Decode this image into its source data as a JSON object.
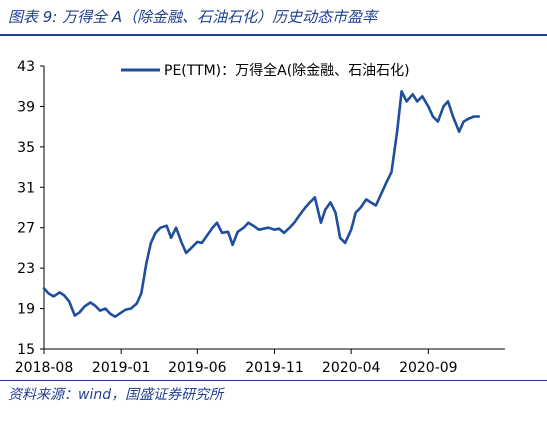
{
  "figure": {
    "title": "图表 9:  万得全 A（除金融、石油石化）历史动态市盈率",
    "source": "资料来源：wind，国盛证券研究所"
  },
  "colors": {
    "accent": "#1f3f8f",
    "line": "#1f4e9c"
  },
  "chart_data": {
    "type": "line",
    "title": "",
    "xlabel": "",
    "ylabel": "",
    "ylim": [
      15,
      43
    ],
    "yticks": [
      15,
      19,
      23,
      27,
      31,
      35,
      39,
      43
    ],
    "xticks": [
      "2018-08",
      "2019-01",
      "2019-06",
      "2019-11",
      "2020-04",
      "2020-09"
    ],
    "xrange": [
      "2018-08-01",
      "2021-01-31"
    ],
    "legend": "top-center",
    "grid": false,
    "series": [
      {
        "name": "PE(TTM)：万得全A(除金融、石油石化)",
        "x": [
          "2018-08-01",
          "2018-08-10",
          "2018-08-20",
          "2018-09-01",
          "2018-09-10",
          "2018-09-20",
          "2018-10-01",
          "2018-10-10",
          "2018-10-20",
          "2018-11-01",
          "2018-11-10",
          "2018-11-20",
          "2018-12-01",
          "2018-12-10",
          "2018-12-20",
          "2019-01-01",
          "2019-01-10",
          "2019-01-20",
          "2019-02-01",
          "2019-02-10",
          "2019-02-20",
          "2019-03-01",
          "2019-03-10",
          "2019-03-20",
          "2019-04-01",
          "2019-04-10",
          "2019-04-20",
          "2019-05-01",
          "2019-05-10",
          "2019-05-20",
          "2019-06-01",
          "2019-06-10",
          "2019-06-20",
          "2019-07-01",
          "2019-07-10",
          "2019-07-20",
          "2019-08-01",
          "2019-08-10",
          "2019-08-20",
          "2019-09-01",
          "2019-09-10",
          "2019-09-20",
          "2019-10-01",
          "2019-10-10",
          "2019-10-20",
          "2019-11-01",
          "2019-11-10",
          "2019-11-20",
          "2019-12-01",
          "2019-12-10",
          "2019-12-20",
          "2020-01-01",
          "2020-01-10",
          "2020-01-20",
          "2020-02-01",
          "2020-02-10",
          "2020-02-20",
          "2020-03-01",
          "2020-03-10",
          "2020-03-20",
          "2020-04-01",
          "2020-04-10",
          "2020-04-20",
          "2020-05-01",
          "2020-05-10",
          "2020-05-20",
          "2020-06-01",
          "2020-06-10",
          "2020-06-20",
          "2020-07-01",
          "2020-07-10",
          "2020-07-20",
          "2020-08-01",
          "2020-08-10",
          "2020-08-20",
          "2020-09-01",
          "2020-09-10",
          "2020-09-20",
          "2020-10-01",
          "2020-10-10",
          "2020-10-20",
          "2020-11-01",
          "2020-11-10",
          "2020-11-20",
          "2020-12-01",
          "2020-12-10"
        ],
        "values": [
          21.0,
          20.5,
          20.2,
          20.6,
          20.3,
          19.7,
          18.3,
          18.6,
          19.2,
          19.6,
          19.3,
          18.8,
          19.0,
          18.5,
          18.2,
          18.6,
          18.9,
          19.0,
          19.5,
          20.5,
          23.5,
          25.5,
          26.5,
          27.0,
          27.2,
          26.0,
          27.0,
          25.5,
          24.5,
          25.0,
          25.6,
          25.5,
          26.2,
          27.0,
          27.5,
          26.5,
          26.6,
          25.3,
          26.6,
          27.0,
          27.5,
          27.2,
          26.8,
          26.9,
          27.0,
          26.8,
          26.9,
          26.5,
          27.0,
          27.5,
          28.2,
          29.0,
          29.5,
          30.0,
          27.5,
          28.8,
          29.5,
          28.5,
          26.0,
          25.5,
          26.8,
          28.5,
          29.0,
          29.8,
          29.5,
          29.2,
          30.5,
          31.5,
          32.5,
          36.5,
          40.5,
          39.5,
          40.2,
          39.5,
          40.0,
          39.0,
          38.0,
          37.5,
          39.0,
          39.5,
          38.0,
          36.5,
          37.5,
          37.8,
          38.0,
          38.0
        ]
      }
    ]
  }
}
